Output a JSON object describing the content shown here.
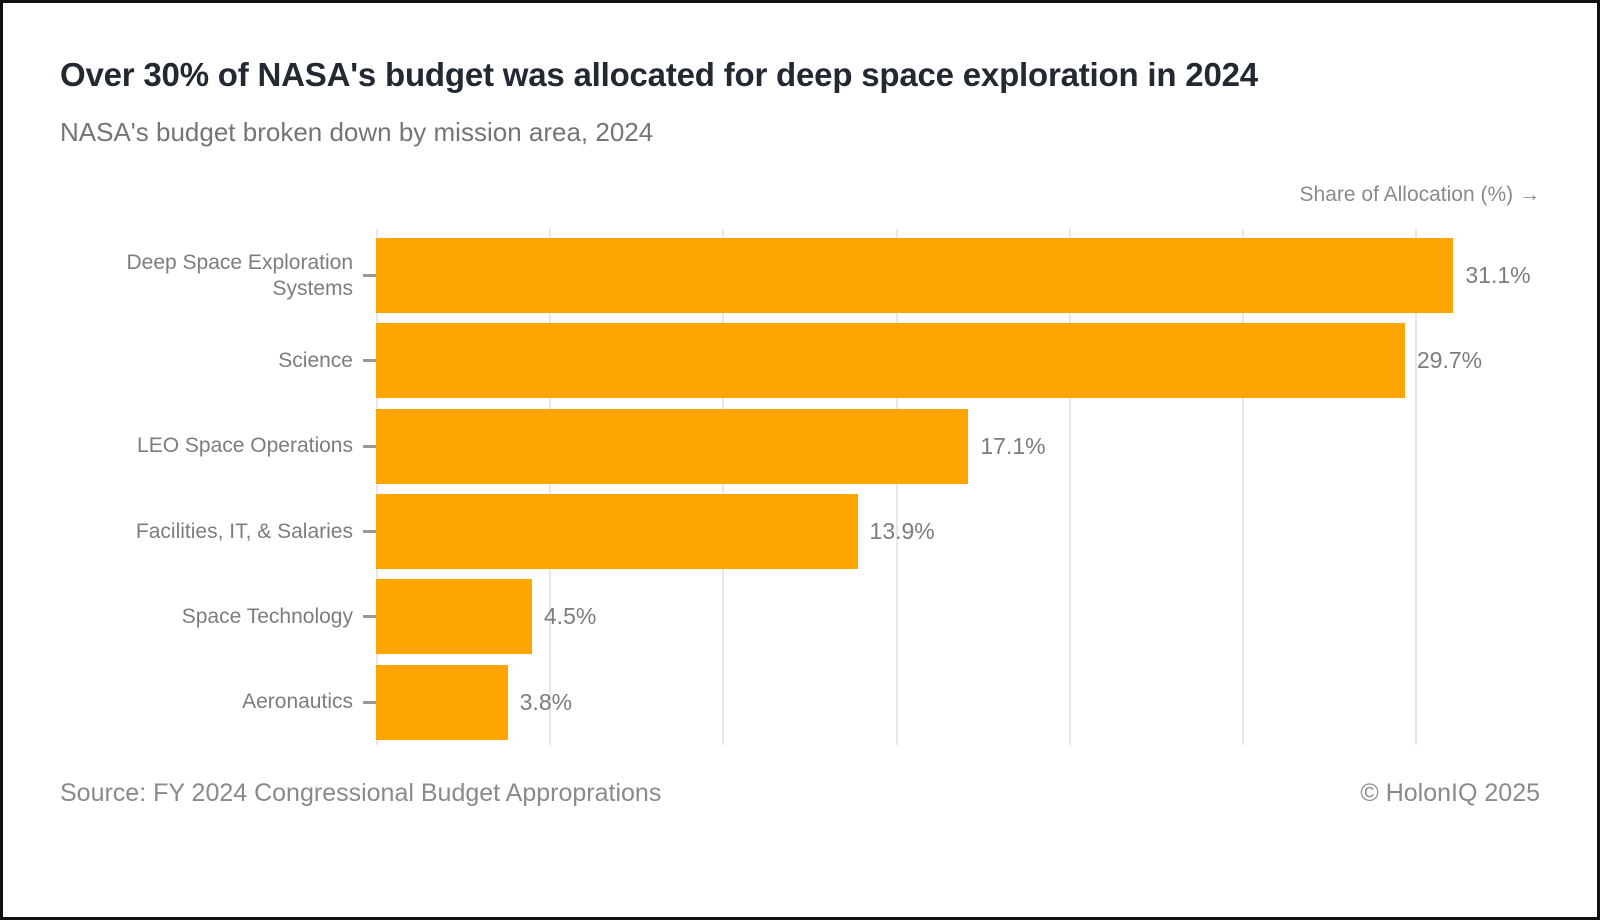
{
  "title": "Over 30% of NASA's budget was allocated for deep space exploration in 2024",
  "subtitle": "NASA's budget broken down by mission area, 2024",
  "axis_label": "Share of Allocation (%) →",
  "footer": {
    "source": "Source: FY 2024 Congressional Budget Approprations",
    "copyright": "© HolonIQ 2025"
  },
  "colors": {
    "bar": "#FFA500",
    "title_text": "#222933",
    "muted_text": "#7d7d7d",
    "gridline": "#e7e7e7",
    "frame_border": "#0e1014"
  },
  "chart_data": {
    "type": "bar",
    "orientation": "horizontal",
    "title": "Over 30% of NASA's budget was allocated for deep space exploration in 2024",
    "subtitle": "NASA's budget broken down by mission area, 2024",
    "xlabel": "Share of Allocation (%)",
    "ylabel": "",
    "categories": [
      "Deep Space Exploration Systems",
      "Science",
      "LEO Space Operations",
      "Facilities, IT, & Salaries",
      "Space Technology",
      "Aeronautics"
    ],
    "values": [
      31.1,
      29.7,
      17.1,
      13.9,
      4.5,
      3.8
    ],
    "value_labels": [
      "31.1%",
      "29.7%",
      "17.1%",
      "13.9%",
      "4.5%",
      "3.8%"
    ],
    "xlim": [
      0,
      33.6
    ],
    "gridline_step": 5,
    "grid": true,
    "legend": false,
    "x_tick_labels_visible": false
  }
}
